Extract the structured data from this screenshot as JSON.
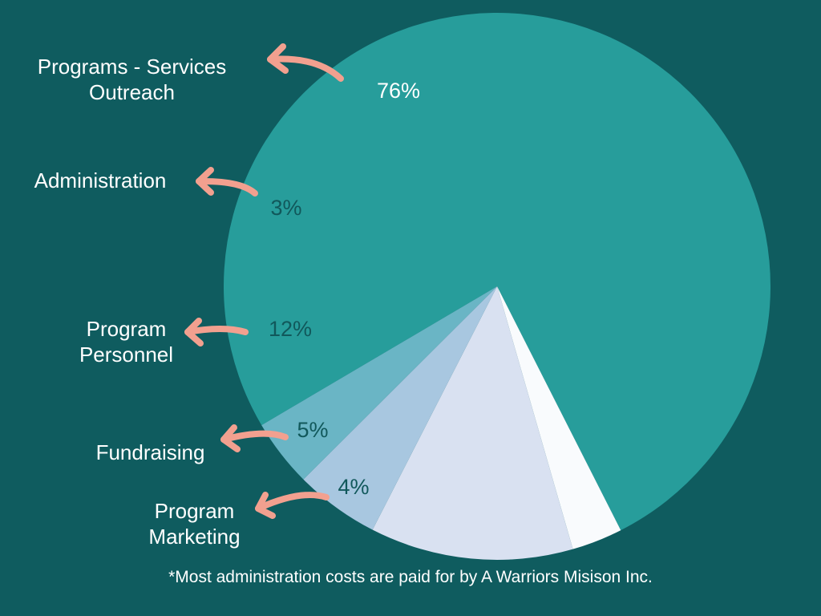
{
  "chart_data": {
    "type": "pie",
    "slices": [
      {
        "label": "Programs - Services Outreach",
        "label_lines": [
          "Programs - Services",
          "Outreach"
        ],
        "value": 76,
        "value_label": "76%",
        "color": "#279d9b",
        "text_color": "#ffffff"
      },
      {
        "label": "Administration",
        "label_lines": [
          "Administration"
        ],
        "value": 3,
        "value_label": "3%",
        "color": "#f9fbfd",
        "text_color": "#11585b"
      },
      {
        "label": "Program Personnel",
        "label_lines": [
          "Program",
          "Personnel"
        ],
        "value": 12,
        "value_label": "12%",
        "color": "#d9e1f1",
        "text_color": "#11585b"
      },
      {
        "label": "Fundraising",
        "label_lines": [
          "Fundraising"
        ],
        "value": 5,
        "value_label": "5%",
        "color": "#a8c7e0",
        "text_color": "#11585b"
      },
      {
        "label": "Program Marketing",
        "label_lines": [
          "Program",
          "Marketing"
        ],
        "value": 4,
        "value_label": "4%",
        "color": "#6ab5c5",
        "text_color": "#11585b"
      }
    ],
    "legend": "none",
    "arrow_color": "#f2a08f"
  },
  "footnote": "*Most administration costs are paid for by A Warriors Misison Inc."
}
